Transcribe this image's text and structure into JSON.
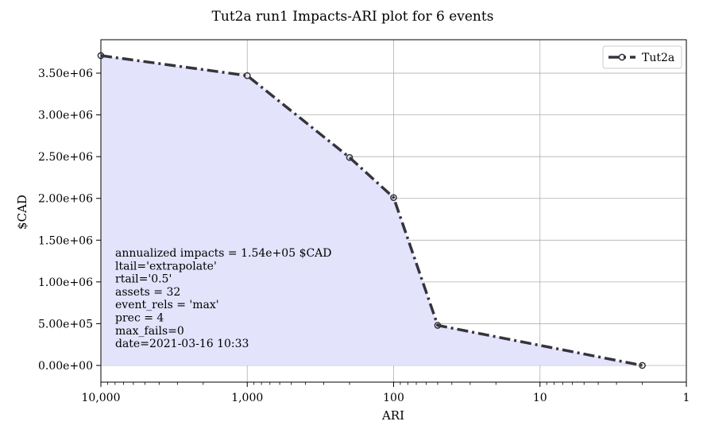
{
  "chart_data": {
    "type": "line",
    "title": "Tut2a run1 Impacts-ARI plot for 6 events",
    "xlabel": "ARI",
    "ylabel": "$CAD",
    "x_scale": "log",
    "x_reversed": true,
    "xlim": [
      10000,
      1
    ],
    "ylim": [
      -200000,
      3900000
    ],
    "grid": true,
    "legend_position": "top-right",
    "x_ticks": [
      {
        "value": 10000,
        "label": "10,000"
      },
      {
        "value": 1000,
        "label": "1,000"
      },
      {
        "value": 100,
        "label": "100"
      },
      {
        "value": 10,
        "label": "10"
      },
      {
        "value": 1,
        "label": "1"
      }
    ],
    "y_ticks": [
      {
        "value": 0,
        "label": "0.00e+00"
      },
      {
        "value": 500000,
        "label": "5.00e+05"
      },
      {
        "value": 1000000,
        "label": "1.00e+06"
      },
      {
        "value": 1500000,
        "label": "1.50e+06"
      },
      {
        "value": 2000000,
        "label": "2.00e+06"
      },
      {
        "value": 2500000,
        "label": "2.50e+06"
      },
      {
        "value": 3000000,
        "label": "3.00e+06"
      },
      {
        "value": 3500000,
        "label": "3.50e+06"
      }
    ],
    "series": [
      {
        "name": "Tut2a",
        "color": "#35343d",
        "fill_color": "#e3e3fc",
        "line_style": "dash-dot",
        "marker": "open-circle",
        "x": [
          10000,
          1000,
          200,
          100,
          50,
          2
        ],
        "y": [
          3710000,
          3470000,
          2490000,
          2010000,
          480000,
          0
        ]
      }
    ],
    "annotations": [
      "annualized impacts = 1.54e+05 $CAD",
      "ltail='extrapolate'",
      "rtail='0.5'",
      "assets = 32",
      "event_rels = 'max'",
      "prec = 4",
      "max_fails=0",
      "date=2021-03-16 10:33"
    ]
  }
}
